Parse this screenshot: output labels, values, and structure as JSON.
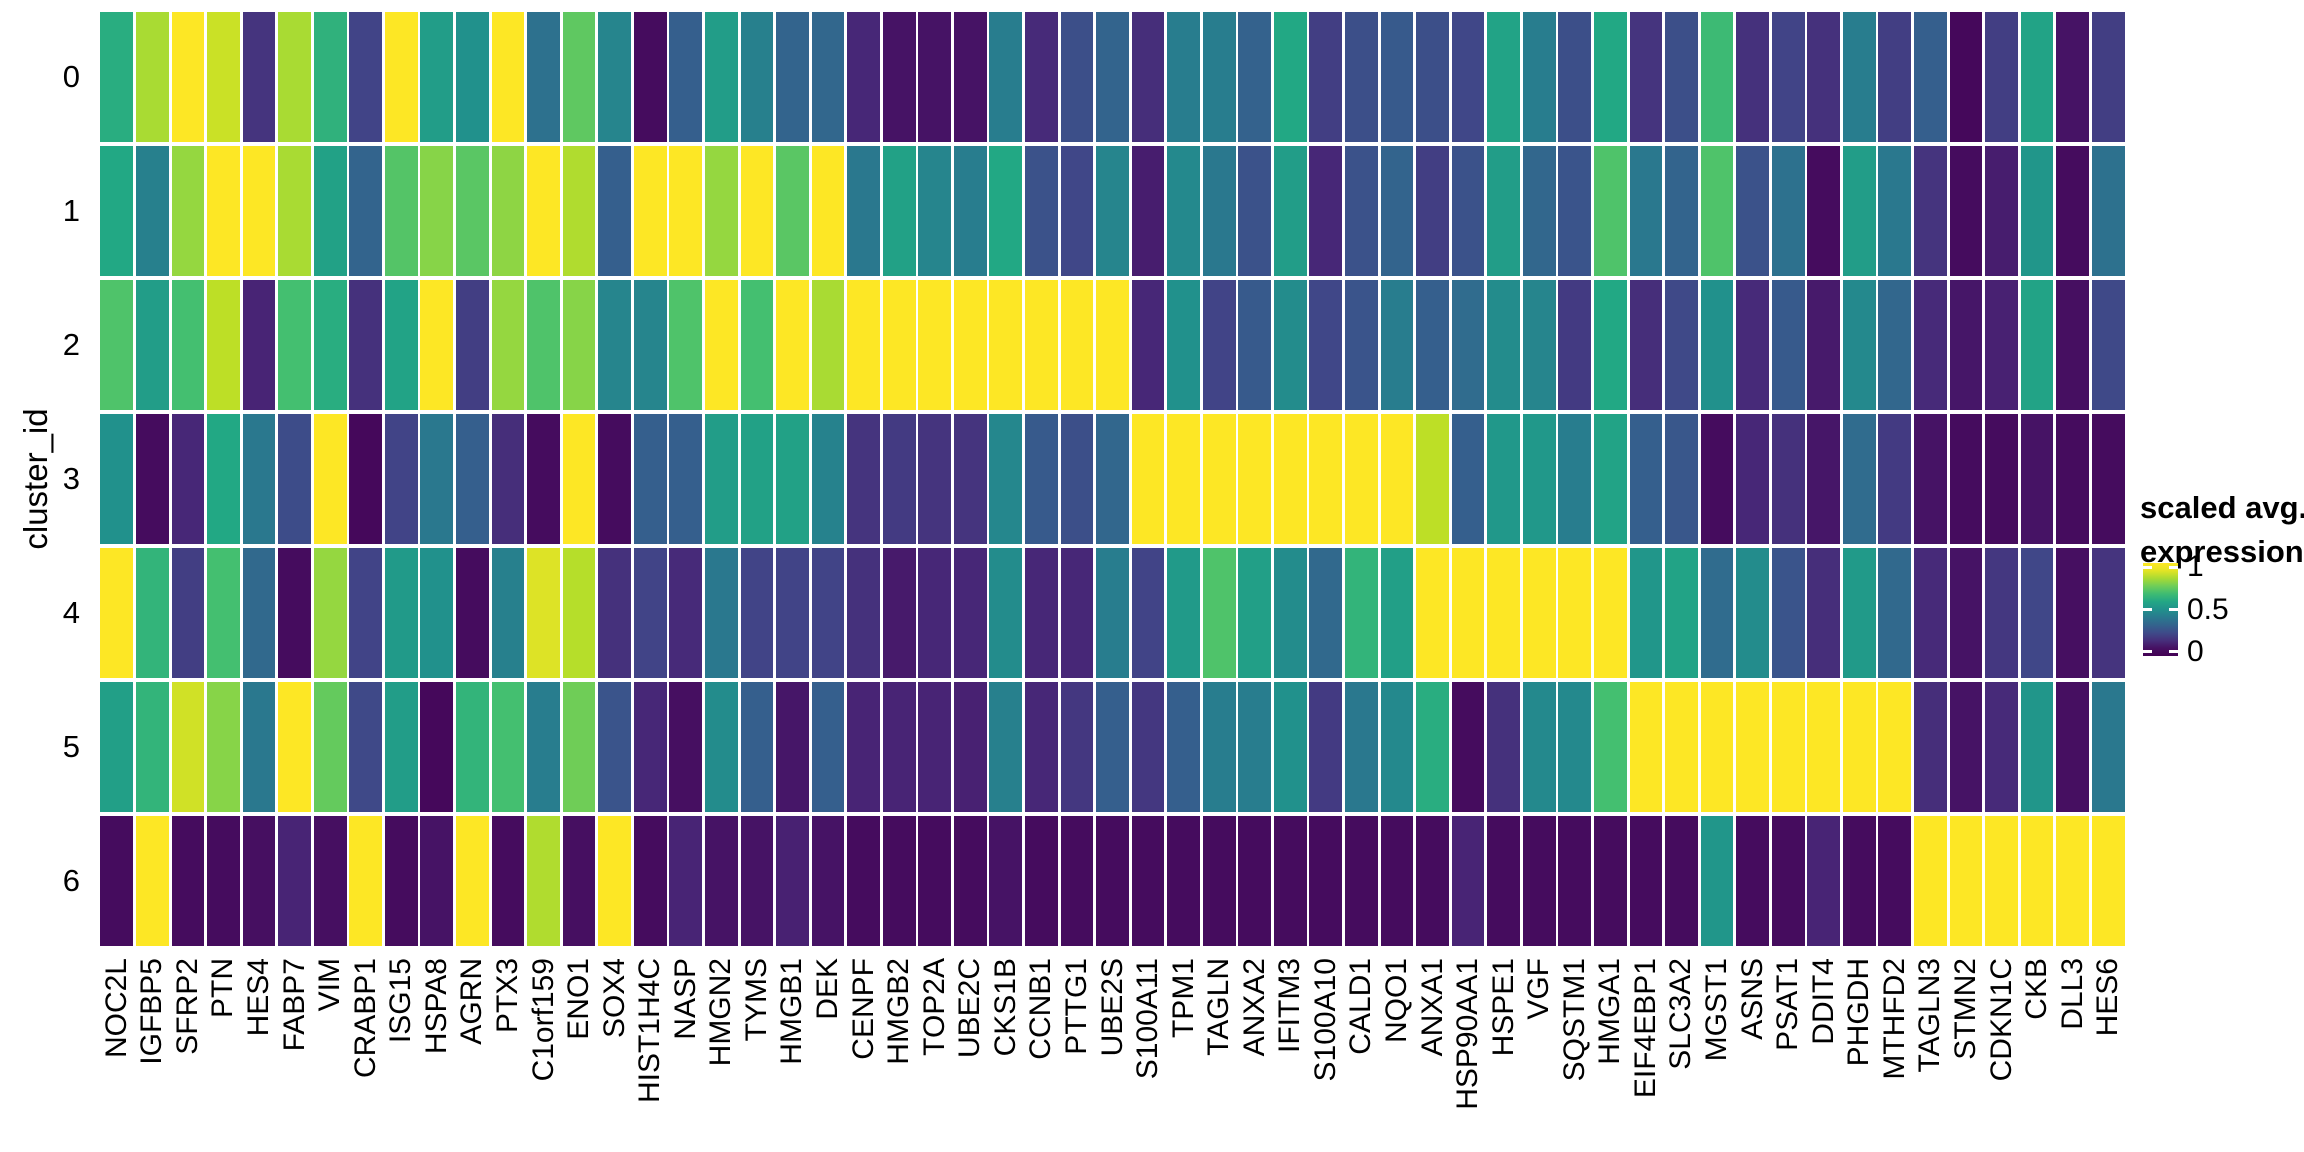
{
  "figure": {
    "background": "#ffffff"
  },
  "y_axis": {
    "title": "cluster_id"
  },
  "legend": {
    "title_line1": "scaled avg.",
    "title_line2": "expression",
    "ticks": [
      {
        "label": "1",
        "value": 1
      },
      {
        "label": "0.5",
        "value": 0.5
      },
      {
        "label": "0",
        "value": 0
      }
    ]
  },
  "chart_data": {
    "type": "heatmap",
    "title": "",
    "xlabel": "",
    "ylabel": "cluster_id",
    "legend_title": "scaled avg. expression",
    "colormap": "viridis",
    "value_range": [
      0,
      1
    ],
    "grid": false,
    "legend_position": "right",
    "colormap_anchors_rgb": [
      [
        68,
        1,
        84
      ],
      [
        72,
        36,
        117
      ],
      [
        65,
        68,
        135
      ],
      [
        53,
        95,
        141
      ],
      [
        42,
        120,
        142
      ],
      [
        33,
        145,
        140
      ],
      [
        34,
        168,
        132
      ],
      [
        68,
        191,
        112
      ],
      [
        122,
        209,
        81
      ],
      [
        189,
        223,
        38
      ],
      [
        253,
        231,
        37
      ]
    ],
    "rows": [
      "0",
      "1",
      "2",
      "3",
      "4",
      "5",
      "6"
    ],
    "columns": [
      "NOC2L",
      "IGFBP5",
      "SFRP2",
      "PTN",
      "HES4",
      "FABP7",
      "VIM",
      "CRABP1",
      "ISG15",
      "HSPA8",
      "AGRN",
      "PTX3",
      "C1orf159",
      "ENO1",
      "SOX4",
      "HIST1H4C",
      "NASP",
      "HMGN2",
      "TYMS",
      "HMGB1",
      "DEK",
      "CENPF",
      "HMGB2",
      "TOP2A",
      "UBE2C",
      "CKS1B",
      "CCNB1",
      "PTTG1",
      "UBE2S",
      "S100A11",
      "TPM1",
      "TAGLN",
      "ANXA2",
      "IFITM3",
      "S100A10",
      "CALD1",
      "NQO1",
      "ANXA1",
      "HSP90AA1",
      "HSPE1",
      "VGF",
      "SQSTM1",
      "HMGA1",
      "EIF4EBP1",
      "SLC3A2",
      "MGST1",
      "ASNS",
      "PSAT1",
      "DDIT4",
      "PHGDH",
      "MTHFD2",
      "TAGLN3",
      "STMN2",
      "CDKN1C",
      "CKB",
      "DLL3",
      "HES6"
    ],
    "values": [
      [
        0.62,
        0.87,
        1.0,
        0.92,
        0.15,
        0.87,
        0.64,
        0.2,
        1.0,
        0.55,
        0.5,
        1.0,
        0.37,
        0.75,
        0.45,
        0.03,
        0.3,
        0.55,
        0.43,
        0.32,
        0.33,
        0.11,
        0.05,
        0.05,
        0.05,
        0.42,
        0.12,
        0.24,
        0.32,
        0.13,
        0.42,
        0.42,
        0.31,
        0.6,
        0.18,
        0.24,
        0.28,
        0.24,
        0.21,
        0.58,
        0.42,
        0.24,
        0.6,
        0.15,
        0.24,
        0.68,
        0.14,
        0.2,
        0.14,
        0.42,
        0.18,
        0.3,
        0.02,
        0.18,
        0.58,
        0.05,
        0.18
      ],
      [
        0.6,
        0.43,
        0.84,
        1.0,
        1.0,
        0.87,
        0.57,
        0.32,
        0.73,
        0.82,
        0.74,
        0.83,
        1.0,
        0.88,
        0.3,
        1.0,
        1.0,
        0.84,
        1.0,
        0.74,
        1.0,
        0.4,
        0.57,
        0.45,
        0.42,
        0.6,
        0.25,
        0.21,
        0.45,
        0.08,
        0.47,
        0.4,
        0.25,
        0.55,
        0.11,
        0.25,
        0.32,
        0.18,
        0.25,
        0.55,
        0.33,
        0.26,
        0.72,
        0.4,
        0.32,
        0.72,
        0.25,
        0.37,
        0.03,
        0.55,
        0.4,
        0.15,
        0.03,
        0.08,
        0.52,
        0.03,
        0.37
      ],
      [
        0.72,
        0.55,
        0.7,
        0.9,
        0.1,
        0.7,
        0.62,
        0.14,
        0.58,
        1.0,
        0.18,
        0.84,
        0.72,
        0.82,
        0.45,
        0.45,
        0.72,
        1.0,
        0.7,
        1.0,
        0.87,
        1.0,
        1.0,
        1.0,
        1.0,
        1.0,
        1.0,
        1.0,
        1.0,
        0.11,
        0.5,
        0.2,
        0.28,
        0.48,
        0.21,
        0.26,
        0.42,
        0.3,
        0.35,
        0.48,
        0.45,
        0.17,
        0.6,
        0.13,
        0.22,
        0.5,
        0.12,
        0.28,
        0.07,
        0.47,
        0.33,
        0.12,
        0.06,
        0.09,
        0.58,
        0.04,
        0.22
      ],
      [
        0.5,
        0.03,
        0.11,
        0.6,
        0.4,
        0.23,
        1.0,
        0.02,
        0.2,
        0.4,
        0.3,
        0.13,
        0.03,
        1.0,
        0.03,
        0.3,
        0.3,
        0.55,
        0.57,
        0.57,
        0.44,
        0.15,
        0.17,
        0.15,
        0.15,
        0.46,
        0.28,
        0.24,
        0.33,
        1.0,
        1.0,
        1.0,
        1.0,
        1.0,
        1.0,
        1.0,
        1.0,
        0.9,
        0.3,
        0.53,
        0.53,
        0.42,
        0.58,
        0.3,
        0.27,
        0.03,
        0.11,
        0.14,
        0.06,
        0.35,
        0.17,
        0.05,
        0.03,
        0.03,
        0.05,
        0.03,
        0.03
      ],
      [
        1.0,
        0.65,
        0.18,
        0.7,
        0.34,
        0.03,
        0.84,
        0.2,
        0.54,
        0.5,
        0.03,
        0.43,
        0.95,
        0.89,
        0.14,
        0.2,
        0.12,
        0.4,
        0.2,
        0.2,
        0.2,
        0.14,
        0.07,
        0.11,
        0.11,
        0.48,
        0.11,
        0.11,
        0.42,
        0.2,
        0.54,
        0.72,
        0.56,
        0.48,
        0.34,
        0.65,
        0.56,
        1.0,
        1.0,
        1.0,
        1.0,
        1.0,
        1.0,
        0.52,
        0.58,
        0.35,
        0.48,
        0.26,
        0.13,
        0.54,
        0.34,
        0.12,
        0.05,
        0.16,
        0.21,
        0.04,
        0.15
      ],
      [
        0.56,
        0.65,
        0.93,
        0.82,
        0.4,
        1.0,
        0.76,
        0.22,
        0.55,
        0.02,
        0.65,
        0.7,
        0.42,
        0.78,
        0.26,
        0.11,
        0.04,
        0.48,
        0.3,
        0.06,
        0.3,
        0.1,
        0.1,
        0.1,
        0.09,
        0.43,
        0.11,
        0.16,
        0.3,
        0.16,
        0.3,
        0.42,
        0.42,
        0.5,
        0.17,
        0.4,
        0.47,
        0.62,
        0.03,
        0.14,
        0.47,
        0.47,
        0.7,
        1.0,
        1.0,
        1.0,
        1.0,
        1.0,
        1.0,
        1.0,
        1.0,
        0.13,
        0.05,
        0.12,
        0.52,
        0.04,
        0.4
      ],
      [
        0.03,
        1.0,
        0.03,
        0.03,
        0.04,
        0.1,
        0.04,
        1.0,
        0.03,
        0.05,
        1.0,
        0.03,
        0.88,
        0.04,
        1.0,
        0.03,
        0.1,
        0.05,
        0.05,
        0.09,
        0.05,
        0.03,
        0.03,
        0.03,
        0.03,
        0.05,
        0.03,
        0.03,
        0.03,
        0.03,
        0.03,
        0.03,
        0.03,
        0.03,
        0.03,
        0.03,
        0.03,
        0.03,
        0.1,
        0.03,
        0.03,
        0.03,
        0.03,
        0.03,
        0.03,
        0.52,
        0.03,
        0.03,
        0.1,
        0.03,
        0.03,
        1.0,
        1.0,
        1.0,
        1.0,
        1.0,
        1.0
      ]
    ]
  }
}
